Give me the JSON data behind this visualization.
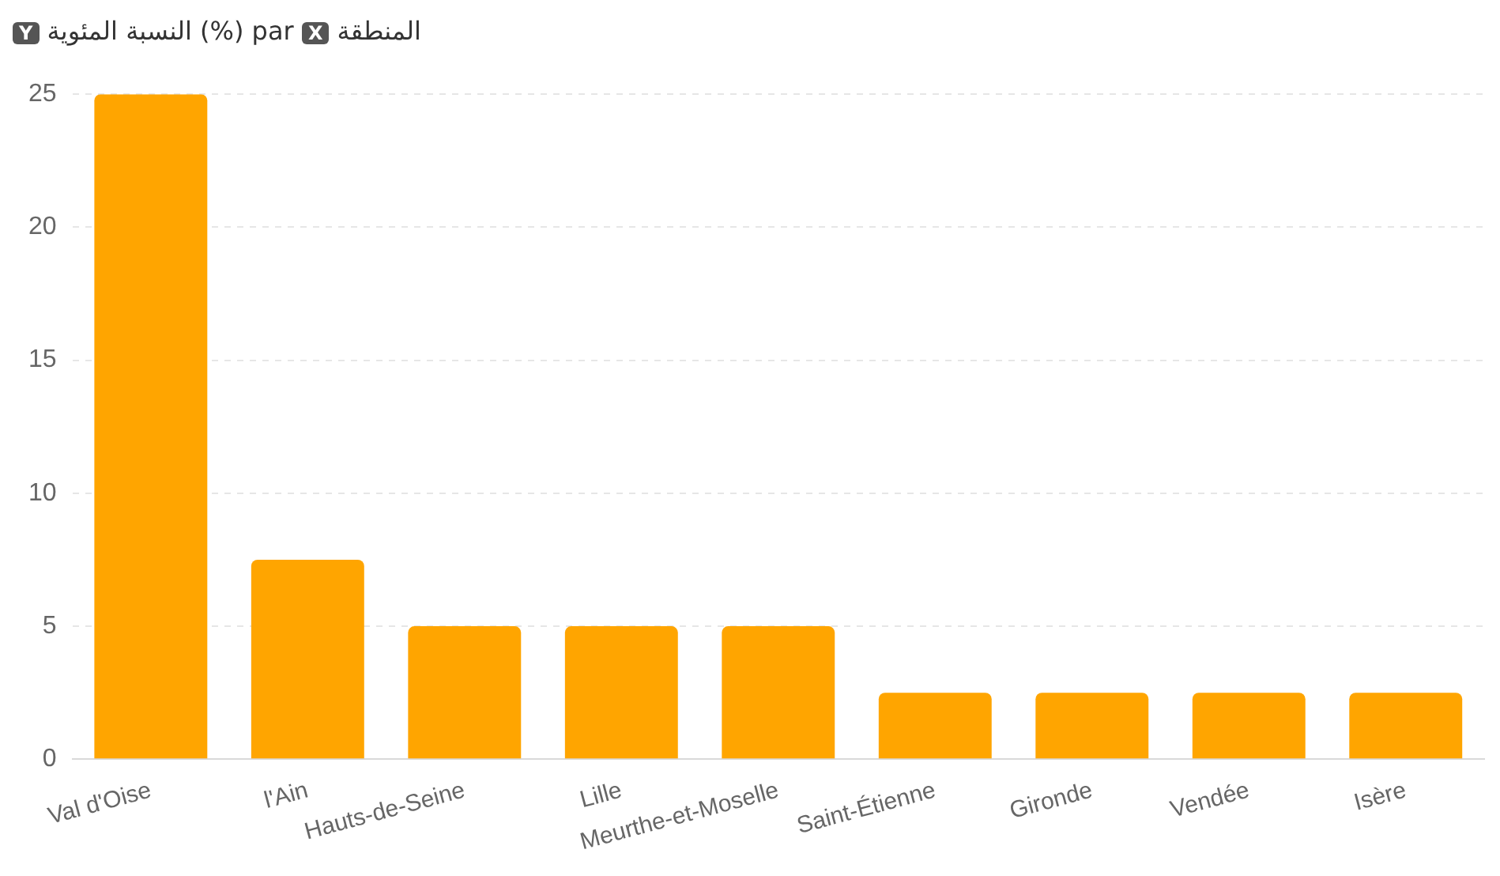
{
  "chart_data": {
    "type": "bar",
    "title": "Y النسبة المئوية (%) par X المنطقة",
    "categories": [
      "Val d'Oise",
      "l'Ain",
      "Hauts-de-Seine",
      "Lille",
      "Meurthe-et-Moselle",
      "Saint-Étienne",
      "Gironde",
      "Vendée",
      "Isère"
    ],
    "values": [
      25,
      7.5,
      5,
      5,
      5,
      2.5,
      2.5,
      2.5,
      2.5
    ],
    "color": "#ffa500",
    "ylim": [
      0,
      25
    ],
    "yticks": [
      0,
      5,
      10,
      15,
      20,
      25
    ],
    "grid": "y",
    "legend": false
  }
}
